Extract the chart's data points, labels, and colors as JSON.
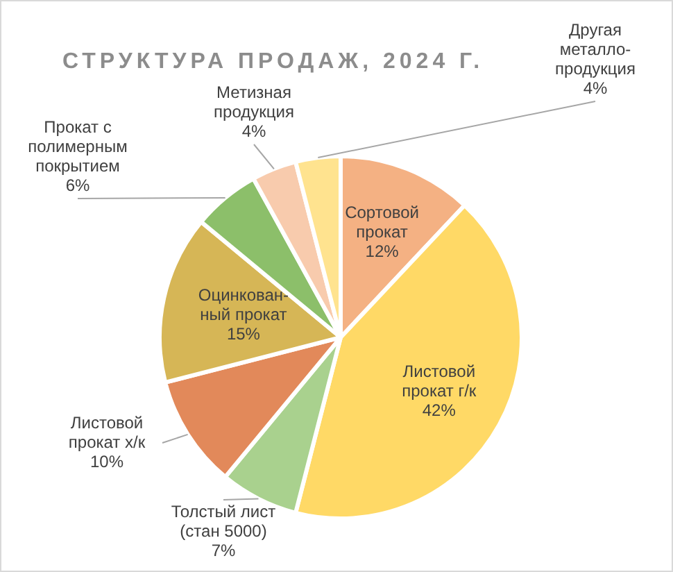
{
  "chart_data": {
    "type": "pie",
    "title": "СТРУКТУРА ПРОДАЖ, 2024 Г.",
    "categories": [
      "Сортовой\nпрокат",
      "Листовой\nпрокат г/к",
      "Толстый лист\n(стан 5000)",
      "Листовой\nпрокат х/к",
      "Оцинкован-\nный прокат",
      "Прокат с\nполимерным\nпокрытием",
      "Метизная\nпродукция",
      "Другая\nметалло-\nпродукция"
    ],
    "values": [
      12,
      42,
      7,
      10,
      15,
      6,
      4,
      4
    ],
    "colors": [
      "#f4b183",
      "#ffd966",
      "#a9d18e",
      "#e2895a",
      "#d6b656",
      "#8cbf6a",
      "#f8cbad",
      "#ffe38f"
    ],
    "value_labels": [
      "12%",
      "42%",
      "7%",
      "10%",
      "15%",
      "6%",
      "4%",
      "4%"
    ],
    "legend": false
  }
}
